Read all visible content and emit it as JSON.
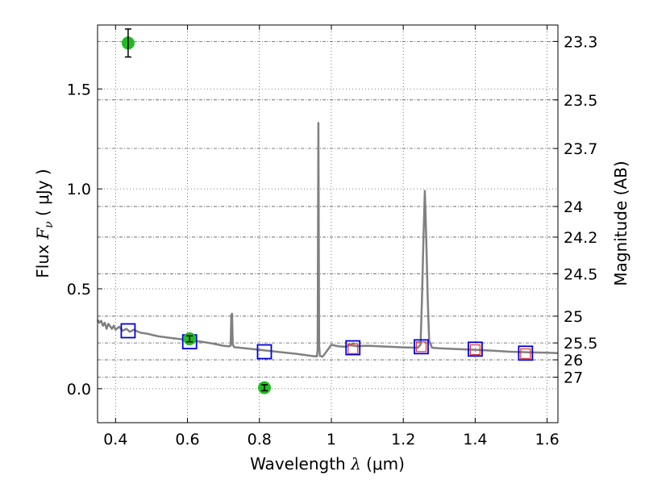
{
  "chart_data": {
    "type": "scatter",
    "xlabel": {
      "prefix": "Wavelength  ",
      "symbol": "λ",
      "unit": " (μm)"
    },
    "ylabel": {
      "prefix": "Flux  ",
      "symbol": "F",
      "subscript": "ν",
      "unit": "  ( μJy )"
    },
    "y2label": "Magnitude (AB)",
    "xlim": [
      0.35,
      1.63
    ],
    "ylim": [
      -0.17,
      1.82
    ],
    "grid": true,
    "xticks": [
      {
        "value": 0.4,
        "label": "0.4"
      },
      {
        "value": 0.6,
        "label": "0.6"
      },
      {
        "value": 0.8,
        "label": "0.8"
      },
      {
        "value": 1.0,
        "label": "1"
      },
      {
        "value": 1.2,
        "label": "1.2"
      },
      {
        "value": 1.4,
        "label": "1.4"
      },
      {
        "value": 1.6,
        "label": "1.6"
      }
    ],
    "yticks": [
      {
        "value": 0.0,
        "label": "0.0"
      },
      {
        "value": 0.5,
        "label": "0.5"
      },
      {
        "value": 1.0,
        "label": "1.0"
      },
      {
        "value": 1.5,
        "label": "1.5"
      }
    ],
    "y2ticks": [
      {
        "magnitude": 23.3,
        "label": "23.3"
      },
      {
        "magnitude": 23.5,
        "label": "23.5"
      },
      {
        "magnitude": 23.7,
        "label": "23.7"
      },
      {
        "magnitude": 24,
        "label": "24"
      },
      {
        "magnitude": 24.2,
        "label": "24.2"
      },
      {
        "magnitude": 24.5,
        "label": "24.5"
      },
      {
        "magnitude": 25,
        "label": "25"
      },
      {
        "magnitude": 25.5,
        "label": "25.5"
      },
      {
        "magnitude": 26,
        "label": "26"
      },
      {
        "magnitude": 27,
        "label": "27"
      }
    ],
    "colors": {
      "model": "#808080",
      "observed": "#22bb22",
      "model_photometry": "#0000dd",
      "observed_box": "#dd3333",
      "grid": "#555555"
    },
    "observed_photometry": [
      {
        "x": 0.435,
        "y": 1.73,
        "err": 0.07
      },
      {
        "x": 0.606,
        "y": 0.25,
        "err": 0.015
      },
      {
        "x": 0.814,
        "y": 0.005,
        "err": 0.015
      }
    ],
    "model_photometry": [
      {
        "x": 0.435,
        "y": 0.29
      },
      {
        "x": 0.606,
        "y": 0.235
      },
      {
        "x": 0.814,
        "y": 0.185
      },
      {
        "x": 1.06,
        "y": 0.205
      },
      {
        "x": 1.25,
        "y": 0.21
      },
      {
        "x": 1.4,
        "y": 0.198
      },
      {
        "x": 1.54,
        "y": 0.178
      }
    ],
    "observed_boxes": [
      {
        "x": 1.06,
        "y": 0.2
      },
      {
        "x": 1.25,
        "y": 0.21
      },
      {
        "x": 1.4,
        "y": 0.195
      },
      {
        "x": 1.54,
        "y": 0.175
      }
    ],
    "model_spectrum": [
      [
        0.35,
        0.345
      ],
      [
        0.355,
        0.33
      ],
      [
        0.36,
        0.34
      ],
      [
        0.365,
        0.315
      ],
      [
        0.37,
        0.33
      ],
      [
        0.375,
        0.3
      ],
      [
        0.38,
        0.325
      ],
      [
        0.39,
        0.3
      ],
      [
        0.395,
        0.315
      ],
      [
        0.4,
        0.295
      ],
      [
        0.41,
        0.31
      ],
      [
        0.42,
        0.29
      ],
      [
        0.43,
        0.3
      ],
      [
        0.44,
        0.285
      ],
      [
        0.45,
        0.295
      ],
      [
        0.47,
        0.28
      ],
      [
        0.49,
        0.275
      ],
      [
        0.5,
        0.27
      ],
      [
        0.52,
        0.262
      ],
      [
        0.55,
        0.255
      ],
      [
        0.58,
        0.248
      ],
      [
        0.61,
        0.242
      ],
      [
        0.64,
        0.235
      ],
      [
        0.67,
        0.226
      ],
      [
        0.7,
        0.215
      ],
      [
        0.715,
        0.212
      ],
      [
        0.72,
        0.215
      ],
      [
        0.722,
        0.37
      ],
      [
        0.724,
        0.375
      ],
      [
        0.726,
        0.22
      ],
      [
        0.73,
        0.208
      ],
      [
        0.76,
        0.202
      ],
      [
        0.8,
        0.195
      ],
      [
        0.85,
        0.185
      ],
      [
        0.9,
        0.175
      ],
      [
        0.93,
        0.168
      ],
      [
        0.95,
        0.163
      ],
      [
        0.96,
        0.162
      ],
      [
        0.962,
        0.2
      ],
      [
        0.964,
        1.33
      ],
      [
        0.966,
        0.22
      ],
      [
        0.968,
        0.165
      ],
      [
        0.975,
        0.16
      ],
      [
        0.98,
        0.17
      ],
      [
        0.99,
        0.195
      ],
      [
        1.0,
        0.22
      ],
      [
        1.02,
        0.212
      ],
      [
        1.04,
        0.21
      ],
      [
        1.05,
        0.218
      ],
      [
        1.07,
        0.213
      ],
      [
        1.1,
        0.215
      ],
      [
        1.15,
        0.211
      ],
      [
        1.2,
        0.207
      ],
      [
        1.24,
        0.205
      ],
      [
        1.248,
        0.22
      ],
      [
        1.252,
        0.45
      ],
      [
        1.256,
        0.75
      ],
      [
        1.26,
        0.99
      ],
      [
        1.264,
        0.75
      ],
      [
        1.268,
        0.45
      ],
      [
        1.272,
        0.24
      ],
      [
        1.28,
        0.205
      ],
      [
        1.3,
        0.202
      ],
      [
        1.35,
        0.198
      ],
      [
        1.4,
        0.195
      ],
      [
        1.45,
        0.19
      ],
      [
        1.5,
        0.185
      ],
      [
        1.55,
        0.182
      ],
      [
        1.6,
        0.18
      ],
      [
        1.63,
        0.178
      ]
    ]
  }
}
